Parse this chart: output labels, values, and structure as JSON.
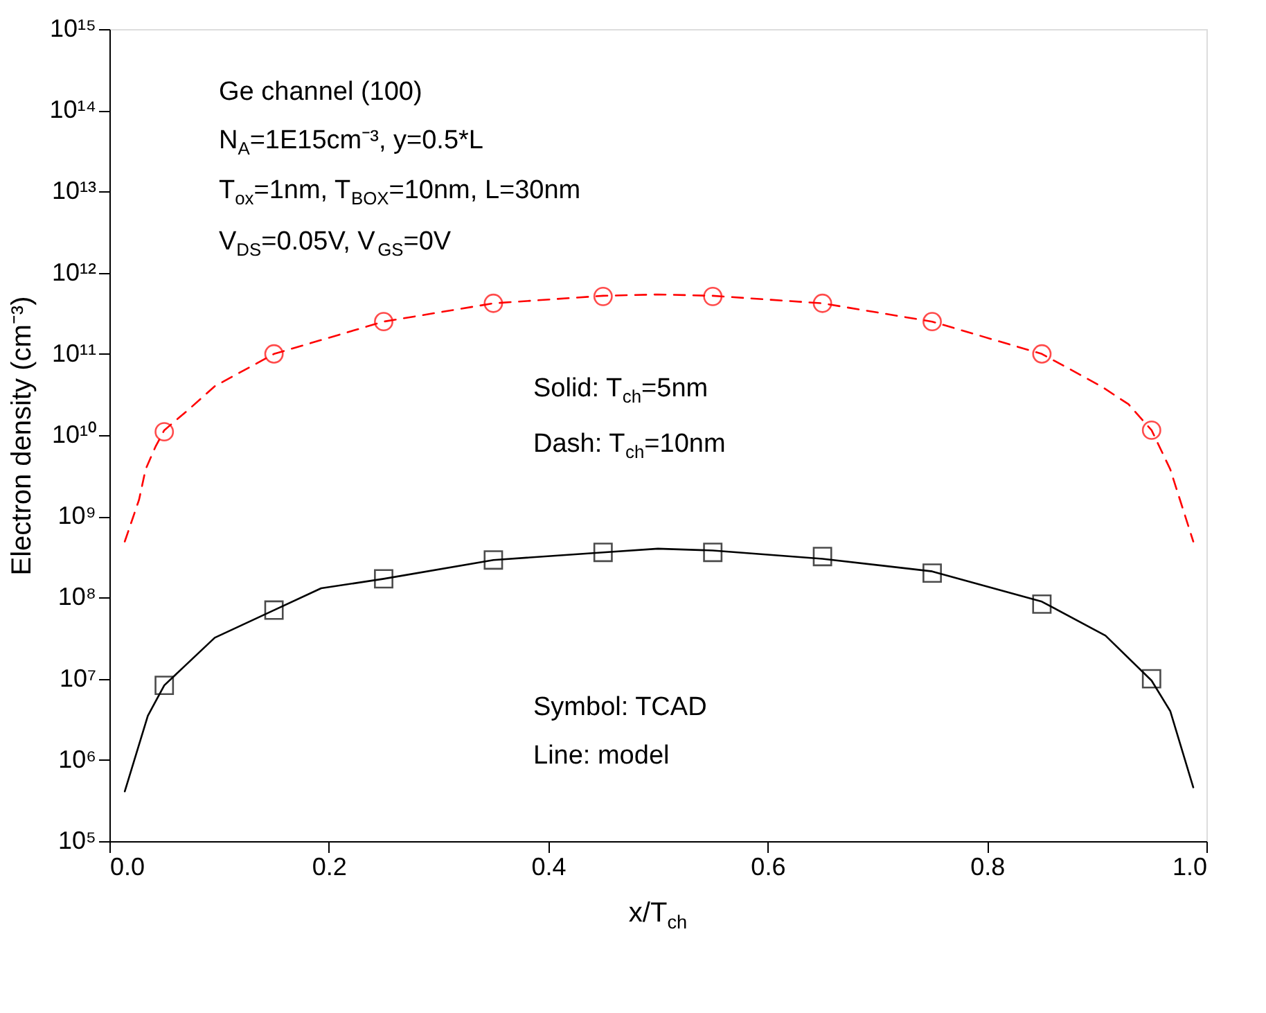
{
  "chart_data": {
    "type": "line",
    "xlabel": "x/T$_{ch}$",
    "ylabel": "Electron density (cm⁻³)",
    "log": "y",
    "grid": false,
    "xlim": [
      0,
      1
    ],
    "xticks": [
      {
        "value": 0,
        "label": "0.0"
      },
      {
        "value": 0.2,
        "label": "0.2"
      },
      {
        "value": 0.4,
        "label": "0.4"
      },
      {
        "value": 0.6,
        "label": "0.6"
      },
      {
        "value": 0.8,
        "label": "0.8"
      },
      {
        "value": 1,
        "label": "1.0"
      }
    ],
    "ylim": [
      100000.0,
      1000000000000000.0
    ],
    "yticks": [
      {
        "value": 100000.0,
        "label": "10⁵"
      },
      {
        "value": 1000000.0,
        "label": "10⁶"
      },
      {
        "value": 10000000.0,
        "label": "10⁷"
      },
      {
        "value": 100000000.0,
        "label": "10⁸"
      },
      {
        "value": 1000000000.0,
        "label": "10⁹"
      },
      {
        "value": 10000000000.0,
        "label": "10¹⁰"
      },
      {
        "value": 100000000000.0,
        "label": "10¹¹"
      },
      {
        "value": 1000000000000.0,
        "label": "10¹²"
      },
      {
        "value": 10000000000000.0,
        "label": "10¹³"
      },
      {
        "value": 100000000000000.0,
        "label": "10¹⁴"
      },
      {
        "value": 1000000000000000.0,
        "label": "10¹⁵"
      }
    ],
    "annotations": [
      "Ge channel (100)",
      "N$_{A}$=1E15cm⁻³, y=0.5*L",
      "T$_{ox}$=1nm, T$_{BOX}$=10nm, L=30nm",
      "V$_{DS}$=0.05V, V$_{GS}$=0V",
      "Solid: T$_{ch}$=5nm",
      "Dash: T$_{ch}$=10nm",
      "Symbol: TCAD",
      "Line: model"
    ],
    "series": [
      {
        "type": "line",
        "color": "#000000",
        "line_style": "solid",
        "marker": "none",
        "x": [
          0.014,
          0.035,
          0.05,
          0.096,
          0.15,
          0.193,
          0.25,
          0.35,
          0.45,
          0.5,
          0.55,
          0.65,
          0.75,
          0.85,
          0.908,
          0.95,
          0.967,
          0.988
        ],
        "values": [
          410000.0,
          3500000.0,
          8300000.0,
          32000000.0,
          70000000.0,
          130000000.0,
          170000000.0,
          290000000.0,
          360000000.0,
          400000000.0,
          380000000.0,
          300000000.0,
          210000000.0,
          89000000.0,
          34000000.0,
          9500000.0,
          4000000.0,
          460000.0
        ]
      },
      {
        "type": "line",
        "color": "#ff0000",
        "line_style": "dashed",
        "marker": "none",
        "x": [
          0.014,
          0.027,
          0.033,
          0.042,
          0.05,
          0.071,
          0.096,
          0.15,
          0.25,
          0.35,
          0.45,
          0.5,
          0.55,
          0.65,
          0.75,
          0.85,
          0.904,
          0.929,
          0.95,
          0.967,
          0.988
        ],
        "values": [
          490000000.0,
          1600000000.0,
          3800000000.0,
          7200000000.0,
          11500000000.0,
          20000000000.0,
          40000000000.0,
          100000000000.0,
          250000000000.0,
          420000000000.0,
          520000000000.0,
          540000000000.0,
          520000000000.0,
          420000000000.0,
          250000000000.0,
          100000000000.0,
          40000000000.0,
          24000000000.0,
          11500000000.0,
          3800000000.0,
          490000000.0
        ]
      },
      {
        "type": "scatter",
        "color": "#000000",
        "marker": "square",
        "x": [
          0.05,
          0.15,
          0.25,
          0.35,
          0.45,
          0.55,
          0.65,
          0.75,
          0.85,
          0.95
        ],
        "values": [
          8300000.0,
          70000000.0,
          170000000.0,
          290000000.0,
          360000000.0,
          360000000.0,
          320000000.0,
          200000000.0,
          83000000.0,
          10000000.0
        ]
      },
      {
        "type": "scatter",
        "color": "#ff0000",
        "marker": "circle",
        "x": [
          0.05,
          0.15,
          0.25,
          0.35,
          0.45,
          0.55,
          0.65,
          0.75,
          0.85,
          0.95
        ],
        "values": [
          11000000000.0,
          100000000000.0,
          250000000000.0,
          420000000000.0,
          510000000000.0,
          510000000000.0,
          420000000000.0,
          250000000000.0,
          100000000000.0,
          11500000000.0
        ]
      }
    ]
  }
}
